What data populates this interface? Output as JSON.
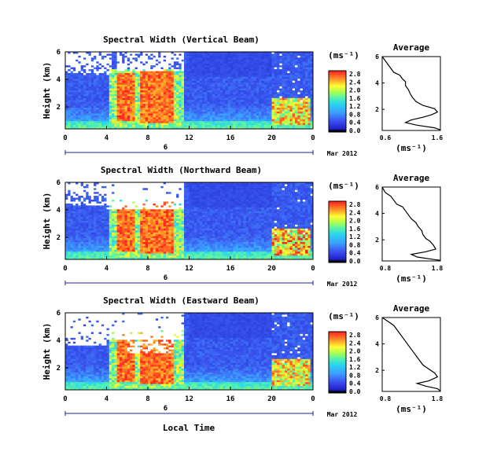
{
  "figure": {
    "shared_xlabel": "Local Time",
    "date_day": "6",
    "date_suffix": "Mar 2012",
    "colorbar_unit": "(ms⁻¹)",
    "avg_title": "Average",
    "avg_xlabel": "(ms⁻¹)",
    "ylabel": "Height (km)"
  },
  "chart_data": [
    {
      "type": "heatmap",
      "title": "Spectral Width (Vertical Beam)",
      "ylabel": "Height (km)",
      "xlabel": "Local Time",
      "x_ticks": [
        "0",
        "4",
        "8",
        "12",
        "16",
        "20",
        "0"
      ],
      "xlim": [
        0,
        24
      ],
      "y_ticks": [
        "6",
        "4",
        "2"
      ],
      "ylim": [
        0.4,
        6.0
      ],
      "date_suffix": "Mar 2012",
      "colorbar": {
        "unit": "(ms⁻¹)",
        "ticks": [
          "2.8",
          "2.4",
          "2.0",
          "1.6",
          "1.2",
          "0.8",
          "0.4",
          "0.0"
        ],
        "range": [
          0,
          2.8
        ]
      },
      "profile": {
        "title": "Average",
        "xlabel": "(ms⁻¹)",
        "x_ticks": [
          "0.6",
          "1.6"
        ],
        "xlim": [
          0.6,
          1.6
        ],
        "y_ticks": [
          "6",
          "4",
          "2"
        ],
        "ylim": [
          0.4,
          6.0
        ],
        "points": [
          [
            0.6,
            6.0
          ],
          [
            0.65,
            5.7
          ],
          [
            0.7,
            5.4
          ],
          [
            0.75,
            5.1
          ],
          [
            0.8,
            4.8
          ],
          [
            0.9,
            4.6
          ],
          [
            0.95,
            4.3
          ],
          [
            1.0,
            4.1
          ],
          [
            1.0,
            3.8
          ],
          [
            1.05,
            3.5
          ],
          [
            1.08,
            3.2
          ],
          [
            1.12,
            2.9
          ],
          [
            1.18,
            2.6
          ],
          [
            1.3,
            2.3
          ],
          [
            1.5,
            2.05
          ],
          [
            1.55,
            1.8
          ],
          [
            1.45,
            1.6
          ],
          [
            1.3,
            1.4
          ],
          [
            1.1,
            1.2
          ],
          [
            1.0,
            1.0
          ],
          [
            1.2,
            0.8
          ],
          [
            1.5,
            0.6
          ],
          [
            1.6,
            0.45
          ]
        ]
      }
    },
    {
      "type": "heatmap",
      "title": "Spectral Width (Northward Beam)",
      "ylabel": "Height (km)",
      "xlabel": "Local Time",
      "x_ticks": [
        "0",
        "4",
        "8",
        "12",
        "16",
        "20",
        "0"
      ],
      "xlim": [
        0,
        24
      ],
      "y_ticks": [
        "6",
        "4",
        "2"
      ],
      "ylim": [
        0.4,
        6.0
      ],
      "date_suffix": "Mar 2012",
      "colorbar": {
        "unit": "(ms⁻¹)",
        "ticks": [
          "2.8",
          "2.4",
          "2.0",
          "1.6",
          "1.2",
          "0.8",
          "0.4",
          "0.0"
        ],
        "range": [
          0,
          2.8
        ]
      },
      "profile": {
        "title": "Average",
        "xlabel": "(ms⁻¹)",
        "x_ticks": [
          "0.8",
          "1.8"
        ],
        "xlim": [
          0.8,
          1.8
        ],
        "y_ticks": [
          "6",
          "4",
          "2"
        ],
        "ylim": [
          0.4,
          6.0
        ],
        "points": [
          [
            0.8,
            6.0
          ],
          [
            0.85,
            5.6
          ],
          [
            0.95,
            5.3
          ],
          [
            1.0,
            5.0
          ],
          [
            1.05,
            4.7
          ],
          [
            1.15,
            4.5
          ],
          [
            1.2,
            4.2
          ],
          [
            1.25,
            3.9
          ],
          [
            1.3,
            3.6
          ],
          [
            1.38,
            3.3
          ],
          [
            1.42,
            3.0
          ],
          [
            1.48,
            2.7
          ],
          [
            1.5,
            2.4
          ],
          [
            1.55,
            2.1
          ],
          [
            1.62,
            1.9
          ],
          [
            1.68,
            1.6
          ],
          [
            1.72,
            1.3
          ],
          [
            1.55,
            1.1
          ],
          [
            1.3,
            0.9
          ],
          [
            1.4,
            0.7
          ],
          [
            1.7,
            0.5
          ],
          [
            1.8,
            0.45
          ]
        ]
      }
    },
    {
      "type": "heatmap",
      "title": "Spectral Width (Eastward Beam)",
      "ylabel": "Height (km)",
      "xlabel": "Local Time",
      "x_ticks": [
        "0",
        "4",
        "8",
        "12",
        "16",
        "20",
        "0"
      ],
      "xlim": [
        0,
        24
      ],
      "y_ticks": [
        "6",
        "4",
        "2"
      ],
      "ylim": [
        0.4,
        6.0
      ],
      "date_suffix": "Mar 2012",
      "colorbar": {
        "unit": "(ms⁻¹)",
        "ticks": [
          "2.8",
          "2.4",
          "2.0",
          "1.6",
          "1.2",
          "0.8",
          "0.4",
          "0.0"
        ],
        "range": [
          0,
          2.8
        ]
      },
      "profile": {
        "title": "Average",
        "xlabel": "(ms⁻¹)",
        "x_ticks": [
          "0.8",
          "1.8"
        ],
        "xlim": [
          0.8,
          1.8
        ],
        "y_ticks": [
          "6",
          "4",
          "2"
        ],
        "ylim": [
          0.4,
          6.0
        ],
        "points": [
          [
            0.8,
            6.0
          ],
          [
            0.9,
            5.7
          ],
          [
            1.0,
            5.4
          ],
          [
            1.05,
            5.1
          ],
          [
            1.1,
            4.8
          ],
          [
            1.15,
            4.5
          ],
          [
            1.2,
            4.2
          ],
          [
            1.25,
            3.9
          ],
          [
            1.3,
            3.6
          ],
          [
            1.35,
            3.3
          ],
          [
            1.4,
            3.0
          ],
          [
            1.45,
            2.7
          ],
          [
            1.5,
            2.4
          ],
          [
            1.6,
            2.1
          ],
          [
            1.7,
            1.8
          ],
          [
            1.75,
            1.5
          ],
          [
            1.6,
            1.2
          ],
          [
            1.4,
            1.0
          ],
          [
            1.55,
            0.8
          ],
          [
            1.75,
            0.6
          ],
          [
            1.8,
            0.45
          ]
        ]
      }
    }
  ]
}
